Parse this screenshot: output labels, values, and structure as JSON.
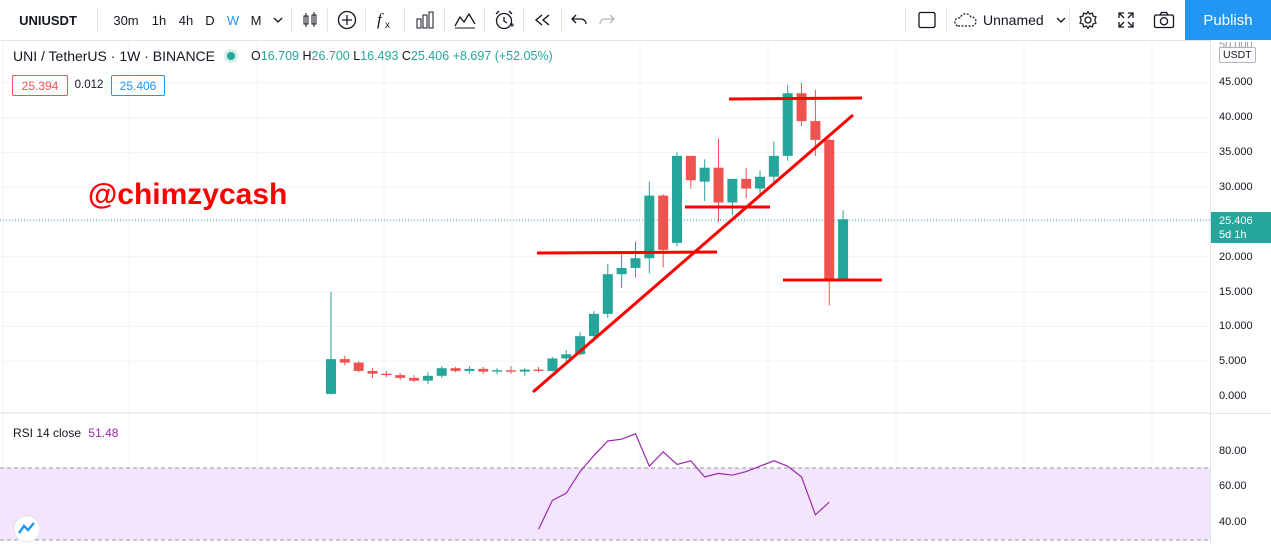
{
  "toolbar": {
    "symbol": "UNIUSDT",
    "intervals": [
      "30m",
      "1h",
      "4h",
      "D",
      "W",
      "M"
    ],
    "active_interval": "W",
    "layout_name": "Unnamed",
    "publish_label": "Publish"
  },
  "legend": {
    "title": "UNI / TetherUS · 1W · BINANCE",
    "o_label": "O",
    "o": "16.709",
    "h_label": "H",
    "h": "26.700",
    "l_label": "L",
    "l": "16.493",
    "c_label": "C",
    "c": "25.406",
    "change": "+8.697 (+52.05%)",
    "bid": "25.394",
    "spread": "0.012",
    "ask": "25.406"
  },
  "watermark": "@chimzycash",
  "price_axis": {
    "currency": "USDT",
    "top_partial": "50.000",
    "ticks": [
      "45.000",
      "40.000",
      "35.000",
      "30.000",
      "25.000",
      "20.000",
      "15.000",
      "10.000",
      "5.000",
      "0.000"
    ],
    "last_price": "25.406",
    "countdown": "5d 1h"
  },
  "rsi": {
    "label": "RSI 14 close",
    "value": "51.48",
    "ticks": [
      "80.00",
      "60.00",
      "40.00"
    ],
    "values": [
      36,
      52,
      56,
      68,
      77,
      85,
      86,
      89,
      71,
      79,
      72,
      74,
      65,
      67,
      66,
      68,
      71,
      74,
      71,
      65,
      44,
      51
    ]
  },
  "colors": {
    "up": "#26a69a",
    "down": "#ef5350",
    "accent": "#2196f3",
    "rsi_line": "#9c27b0",
    "rsi_band": "#f3e5fb",
    "annotation": "#ff0000"
  },
  "chart_data": {
    "type": "candlestick",
    "ylim": [
      0,
      50
    ],
    "candles": [
      {
        "o": 0.3,
        "h": 15.0,
        "l": 0.2,
        "c": 5.3
      },
      {
        "o": 5.3,
        "h": 5.8,
        "l": 4.4,
        "c": 4.8
      },
      {
        "o": 4.8,
        "h": 5.0,
        "l": 3.4,
        "c": 3.6
      },
      {
        "o": 3.6,
        "h": 4.0,
        "l": 2.6,
        "c": 3.2
      },
      {
        "o": 3.2,
        "h": 3.6,
        "l": 2.7,
        "c": 3.0
      },
      {
        "o": 3.0,
        "h": 3.3,
        "l": 2.3,
        "c": 2.6
      },
      {
        "o": 2.6,
        "h": 3.0,
        "l": 2.0,
        "c": 2.2
      },
      {
        "o": 2.2,
        "h": 3.4,
        "l": 1.7,
        "c": 2.9
      },
      {
        "o": 2.9,
        "h": 4.3,
        "l": 2.6,
        "c": 4.0
      },
      {
        "o": 4.0,
        "h": 4.2,
        "l": 3.4,
        "c": 3.6
      },
      {
        "o": 3.6,
        "h": 4.3,
        "l": 3.2,
        "c": 3.9
      },
      {
        "o": 3.9,
        "h": 4.2,
        "l": 3.2,
        "c": 3.5
      },
      {
        "o": 3.5,
        "h": 4.0,
        "l": 3.1,
        "c": 3.7
      },
      {
        "o": 3.7,
        "h": 4.3,
        "l": 3.2,
        "c": 3.5
      },
      {
        "o": 3.5,
        "h": 4.0,
        "l": 2.9,
        "c": 3.8
      },
      {
        "o": 3.8,
        "h": 4.2,
        "l": 3.4,
        "c": 3.6
      },
      {
        "o": 3.6,
        "h": 5.6,
        "l": 3.5,
        "c": 5.4
      },
      {
        "o": 5.4,
        "h": 6.6,
        "l": 4.5,
        "c": 6.0
      },
      {
        "o": 6.0,
        "h": 9.2,
        "l": 5.8,
        "c": 8.6
      },
      {
        "o": 8.6,
        "h": 12.2,
        "l": 7.8,
        "c": 11.8
      },
      {
        "o": 11.8,
        "h": 19.0,
        "l": 11.2,
        "c": 17.5
      },
      {
        "o": 17.5,
        "h": 20.5,
        "l": 15.5,
        "c": 18.4
      },
      {
        "o": 18.4,
        "h": 22.2,
        "l": 17.0,
        "c": 19.8
      },
      {
        "o": 19.8,
        "h": 30.8,
        "l": 17.6,
        "c": 28.8
      },
      {
        "o": 28.8,
        "h": 29.0,
        "l": 18.5,
        "c": 21.0
      },
      {
        "o": 22.0,
        "h": 35.0,
        "l": 21.5,
        "c": 34.5
      },
      {
        "o": 34.5,
        "h": 34.5,
        "l": 29.8,
        "c": 31.0
      },
      {
        "o": 30.8,
        "h": 34.0,
        "l": 28.0,
        "c": 32.8
      },
      {
        "o": 32.8,
        "h": 37.0,
        "l": 25.0,
        "c": 27.8
      },
      {
        "o": 27.8,
        "h": 31.0,
        "l": 26.0,
        "c": 31.2
      },
      {
        "o": 31.2,
        "h": 32.8,
        "l": 28.4,
        "c": 29.8
      },
      {
        "o": 29.8,
        "h": 32.4,
        "l": 28.6,
        "c": 31.5
      },
      {
        "o": 31.5,
        "h": 36.6,
        "l": 30.4,
        "c": 34.5
      },
      {
        "o": 34.5,
        "h": 44.7,
        "l": 33.8,
        "c": 43.5
      },
      {
        "o": 43.5,
        "h": 45.0,
        "l": 38.8,
        "c": 39.5
      },
      {
        "o": 39.5,
        "h": 44.0,
        "l": 34.5,
        "c": 36.8
      },
      {
        "o": 36.8,
        "h": 37.0,
        "l": 13.0,
        "c": 16.7
      },
      {
        "o": 16.7,
        "h": 26.7,
        "l": 16.5,
        "c": 25.4
      }
    ]
  }
}
